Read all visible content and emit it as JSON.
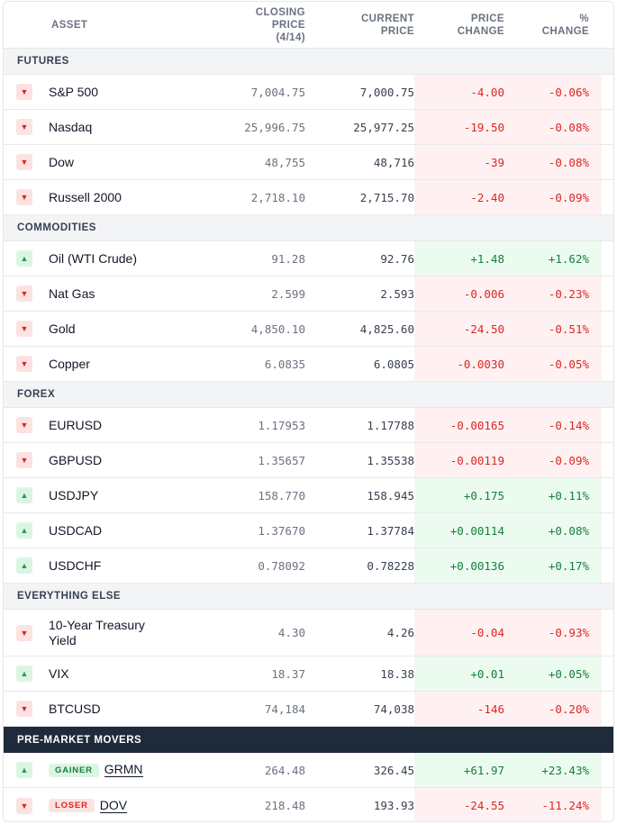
{
  "header": {
    "asset": "ASSET",
    "closing_l1": "CLOSING PRICE",
    "closing_l2": "(4/14)",
    "current_l1": "CURRENT",
    "current_l2": "PRICE",
    "change_l1": "PRICE",
    "change_l2": "CHANGE",
    "pct_l1": "%",
    "pct_l2": "CHANGE"
  },
  "sections": [
    {
      "title": "FUTURES",
      "rows": [
        {
          "asset": "S&P 500",
          "close": "7,004.75",
          "current": "7,000.75",
          "change": "-4.00",
          "pct": "-0.06%",
          "dir": "down"
        },
        {
          "asset": "Nasdaq",
          "close": "25,996.75",
          "current": "25,977.25",
          "change": "-19.50",
          "pct": "-0.08%",
          "dir": "down"
        },
        {
          "asset": "Dow",
          "close": "48,755",
          "current": "48,716",
          "change": "-39",
          "pct": "-0.08%",
          "dir": "down"
        },
        {
          "asset": "Russell 2000",
          "close": "2,718.10",
          "current": "2,715.70",
          "change": "-2.40",
          "pct": "-0.09%",
          "dir": "down"
        }
      ]
    },
    {
      "title": "COMMODITIES",
      "rows": [
        {
          "asset": "Oil (WTI Crude)",
          "close": "91.28",
          "current": "92.76",
          "change": "+1.48",
          "pct": "+1.62%",
          "dir": "up"
        },
        {
          "asset": "Nat Gas",
          "close": "2.599",
          "current": "2.593",
          "change": "-0.006",
          "pct": "-0.23%",
          "dir": "down"
        },
        {
          "asset": "Gold",
          "close": "4,850.10",
          "current": "4,825.60",
          "change": "-24.50",
          "pct": "-0.51%",
          "dir": "down"
        },
        {
          "asset": "Copper",
          "close": "6.0835",
          "current": "6.0805",
          "change": "-0.0030",
          "pct": "-0.05%",
          "dir": "down"
        }
      ]
    },
    {
      "title": "FOREX",
      "rows": [
        {
          "asset": "EURUSD",
          "close": "1.17953",
          "current": "1.17788",
          "change": "-0.00165",
          "pct": "-0.14%",
          "dir": "down"
        },
        {
          "asset": "GBPUSD",
          "close": "1.35657",
          "current": "1.35538",
          "change": "-0.00119",
          "pct": "-0.09%",
          "dir": "down"
        },
        {
          "asset": "USDJPY",
          "close": "158.770",
          "current": "158.945",
          "change": "+0.175",
          "pct": "+0.11%",
          "dir": "up"
        },
        {
          "asset": "USDCAD",
          "close": "1.37670",
          "current": "1.37784",
          "change": "+0.00114",
          "pct": "+0.08%",
          "dir": "up"
        },
        {
          "asset": "USDCHF",
          "close": "0.78092",
          "current": "0.78228",
          "change": "+0.00136",
          "pct": "+0.17%",
          "dir": "up"
        }
      ]
    },
    {
      "title": "EVERYTHING ELSE",
      "rows": [
        {
          "asset": "10-Year Treasury Yield",
          "close": "4.30",
          "current": "4.26",
          "change": "-0.04",
          "pct": "-0.93%",
          "dir": "down",
          "tall": true
        },
        {
          "asset": "VIX",
          "close": "18.37",
          "current": "18.38",
          "change": "+0.01",
          "pct": "+0.05%",
          "dir": "up"
        },
        {
          "asset": "BTCUSD",
          "close": "74,184",
          "current": "74,038",
          "change": "-146",
          "pct": "-0.20%",
          "dir": "down"
        }
      ]
    }
  ],
  "movers": {
    "title": "PRE-MARKET MOVERS",
    "rows": [
      {
        "badge": "GAINER",
        "ticker": "GRMN",
        "close": "264.48",
        "current": "326.45",
        "change": "+61.97",
        "pct": "+23.43%",
        "dir": "up"
      },
      {
        "badge": "LOSER",
        "ticker": "DOV",
        "close": "218.48",
        "current": "193.93",
        "change": "-24.55",
        "pct": "-11.24%",
        "dir": "down"
      }
    ]
  },
  "icons": {
    "up": "triangle-up-icon",
    "down": "triangle-down-icon"
  },
  "colors": {
    "negative": "#dc2626",
    "positive": "#15803d",
    "dark_header": "#1f2a3a"
  }
}
